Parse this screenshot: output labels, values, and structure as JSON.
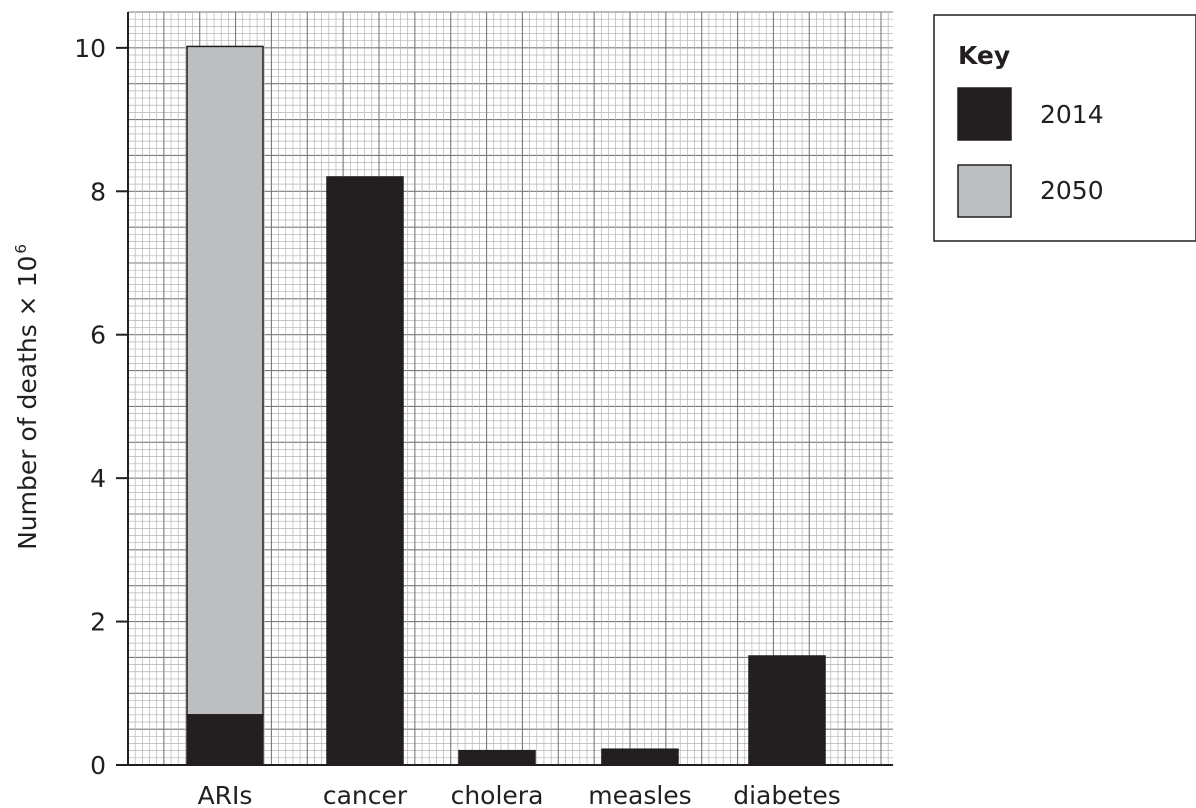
{
  "chart_data": {
    "type": "bar",
    "stacked": true,
    "categories": [
      "ARIs",
      "cancer",
      "cholera",
      "measles",
      "diabetes"
    ],
    "series": [
      {
        "name": "2014",
        "color": "#231f20",
        "values": [
          0.7,
          8.2,
          0.2,
          0.22,
          1.52
        ]
      },
      {
        "name": "2050",
        "color": "#bcbec0",
        "values": [
          9.32,
          null,
          null,
          null,
          null
        ]
      }
    ],
    "ylabel": "Number of deaths × 10",
    "ylabel_superscript": "6",
    "xlabel": "",
    "ylim": [
      0,
      10.5
    ],
    "yticks": [
      0,
      2,
      4,
      6,
      8,
      10
    ],
    "grid": true,
    "legend": {
      "title": "Key",
      "placement": "right"
    }
  }
}
